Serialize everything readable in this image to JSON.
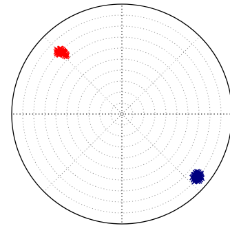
{
  "chart_data": {
    "type": "scatter",
    "coordinate_system": "polar",
    "grid": true,
    "grid_style": "dotted",
    "grid_rings": 10,
    "grid_spokes": 8,
    "rlim": [
      0,
      1
    ],
    "marker": "x",
    "series": [
      {
        "color": "#ff0000",
        "points": [
          [
            -0.584,
            0.562
          ],
          [
            -0.572,
            0.577
          ],
          [
            -0.563,
            0.589
          ],
          [
            -0.553,
            0.595
          ],
          [
            -0.543,
            0.587
          ],
          [
            -0.532,
            0.579
          ],
          [
            -0.521,
            0.568
          ],
          [
            -0.514,
            0.555
          ],
          [
            -0.527,
            0.548
          ],
          [
            -0.541,
            0.556
          ],
          [
            -0.556,
            0.566
          ],
          [
            -0.567,
            0.552
          ],
          [
            -0.578,
            0.544
          ],
          [
            -0.59,
            0.551
          ],
          [
            -0.596,
            0.566
          ],
          [
            -0.585,
            0.583
          ],
          [
            -0.546,
            0.572
          ],
          [
            -0.535,
            0.56
          ],
          [
            -0.511,
            0.54
          ],
          [
            -0.498,
            0.535
          ],
          [
            -0.505,
            0.522
          ],
          [
            -0.52,
            0.528
          ],
          [
            -0.533,
            0.537
          ],
          [
            -0.56,
            0.575
          ],
          [
            -0.575,
            0.561
          ],
          [
            -0.548,
            0.545
          ],
          [
            -0.528,
            0.572
          ],
          [
            -0.561,
            0.597
          ],
          [
            -0.503,
            0.546
          ],
          [
            -0.59,
            0.583
          ],
          [
            -0.518,
            0.56
          ],
          [
            -0.568,
            0.538
          ]
        ]
      },
      {
        "color": "#000080",
        "points": [
          [
            0.663,
            -0.57
          ],
          [
            0.676,
            -0.56
          ],
          [
            0.69,
            -0.553
          ],
          [
            0.703,
            -0.562
          ],
          [
            0.712,
            -0.575
          ],
          [
            0.708,
            -0.59
          ],
          [
            0.695,
            -0.598
          ],
          [
            0.68,
            -0.602
          ],
          [
            0.667,
            -0.594
          ],
          [
            0.655,
            -0.583
          ],
          [
            0.646,
            -0.568
          ],
          [
            0.66,
            -0.551
          ],
          [
            0.672,
            -0.545
          ],
          [
            0.686,
            -0.538
          ],
          [
            0.7,
            -0.544
          ],
          [
            0.716,
            -0.555
          ],
          [
            0.72,
            -0.567
          ],
          [
            0.69,
            -0.573
          ],
          [
            0.677,
            -0.582
          ],
          [
            0.664,
            -0.608
          ],
          [
            0.703,
            -0.609
          ],
          [
            0.687,
            -0.613
          ],
          [
            0.651,
            -0.553
          ],
          [
            0.639,
            -0.578
          ],
          [
            0.711,
            -0.597
          ],
          [
            0.726,
            -0.583
          ],
          [
            0.698,
            -0.528
          ],
          [
            0.682,
            -0.524
          ],
          [
            0.668,
            -0.532
          ],
          [
            0.65,
            -0.598
          ],
          [
            0.718,
            -0.54
          ],
          [
            0.694,
            -0.588
          ],
          [
            0.674,
            -0.57
          ],
          [
            0.705,
            -0.58
          ],
          [
            0.684,
            -0.595
          ],
          [
            0.66,
            -0.615
          ]
        ]
      }
    ]
  }
}
